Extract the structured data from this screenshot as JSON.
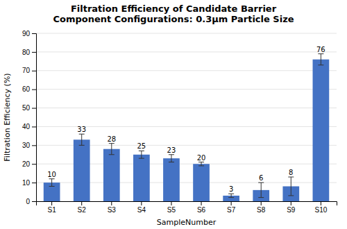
{
  "chart_data": {
    "type": "bar",
    "title": [
      "Filtration Efficiency of Candidate Barrier",
      "Component Configurations: 0.3μm Particle Size"
    ],
    "x_label": "SampleNumber",
    "y_label": "Filtration Efficiency (%)",
    "categories": [
      "S1",
      "S2",
      "S3",
      "S4",
      "S5",
      "S6",
      "S7",
      "S8",
      "S9",
      "S10"
    ],
    "values": [
      10,
      33,
      28,
      25,
      23,
      20,
      3,
      6,
      8,
      76
    ],
    "errors": [
      2,
      3,
      3,
      2,
      2,
      1,
      1,
      4,
      5,
      3
    ],
    "color": "#4472C4",
    "ylim": [
      0,
      90
    ],
    "yticks": [
      0,
      10,
      20,
      30,
      40,
      50,
      60,
      70,
      80,
      90
    ],
    "grid": true,
    "data_labels": true
  }
}
